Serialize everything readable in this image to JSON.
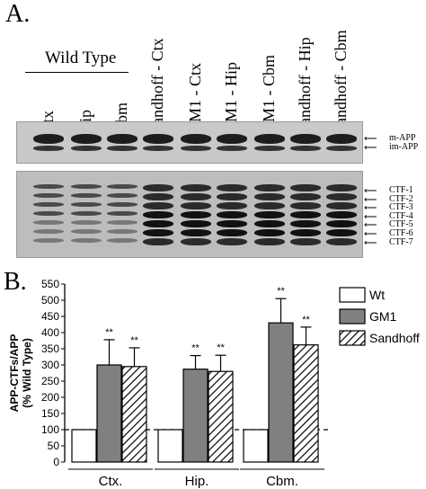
{
  "panel_a": {
    "letter": "A.",
    "wild_type_label": "Wild Type",
    "lanes": [
      "Ctx",
      "Hip",
      "Cbm",
      "Sandhoff - Ctx",
      "GM1 - Ctx",
      "GM1 - Hip",
      "GM1 - Cbm",
      "Sandhoff - Hip",
      "Sandhoff - Cbm"
    ],
    "app_markers": [
      "m-APP",
      "im-APP"
    ],
    "ctf_markers": [
      "CTF-1",
      "CTF-2",
      "CTF-3",
      "CTF-4",
      "CTF-5",
      "CTF-6",
      "CTF-7"
    ]
  },
  "panel_b": {
    "letter": "B."
  },
  "chart_data": {
    "type": "bar",
    "categories": [
      "Ctx.",
      "Hip.",
      "Cbm."
    ],
    "series": [
      {
        "name": "Wt",
        "values": [
          100,
          100,
          100
        ],
        "errors": [
          0,
          0,
          0
        ],
        "significance": [
          "",
          "",
          ""
        ],
        "fill": "#ffffff"
      },
      {
        "name": "GM1",
        "values": [
          300,
          287,
          430
        ],
        "errors": [
          78,
          42,
          75
        ],
        "significance": [
          "**",
          "**",
          "**"
        ],
        "fill": "#808080"
      },
      {
        "name": "Sandhoff",
        "values": [
          295,
          280,
          362
        ],
        "errors": [
          58,
          50,
          55
        ],
        "significance": [
          "**",
          "**",
          "**"
        ],
        "fill": "hatched"
      }
    ],
    "ylabel_line1": "APP-CTFs/APP",
    "ylabel_line2": "(% Wild Type)",
    "ylim": [
      0,
      550
    ],
    "yticks": [
      0,
      50,
      100,
      150,
      200,
      250,
      300,
      350,
      400,
      450,
      500,
      550
    ],
    "reference_line": 100,
    "legend_position": "right"
  }
}
